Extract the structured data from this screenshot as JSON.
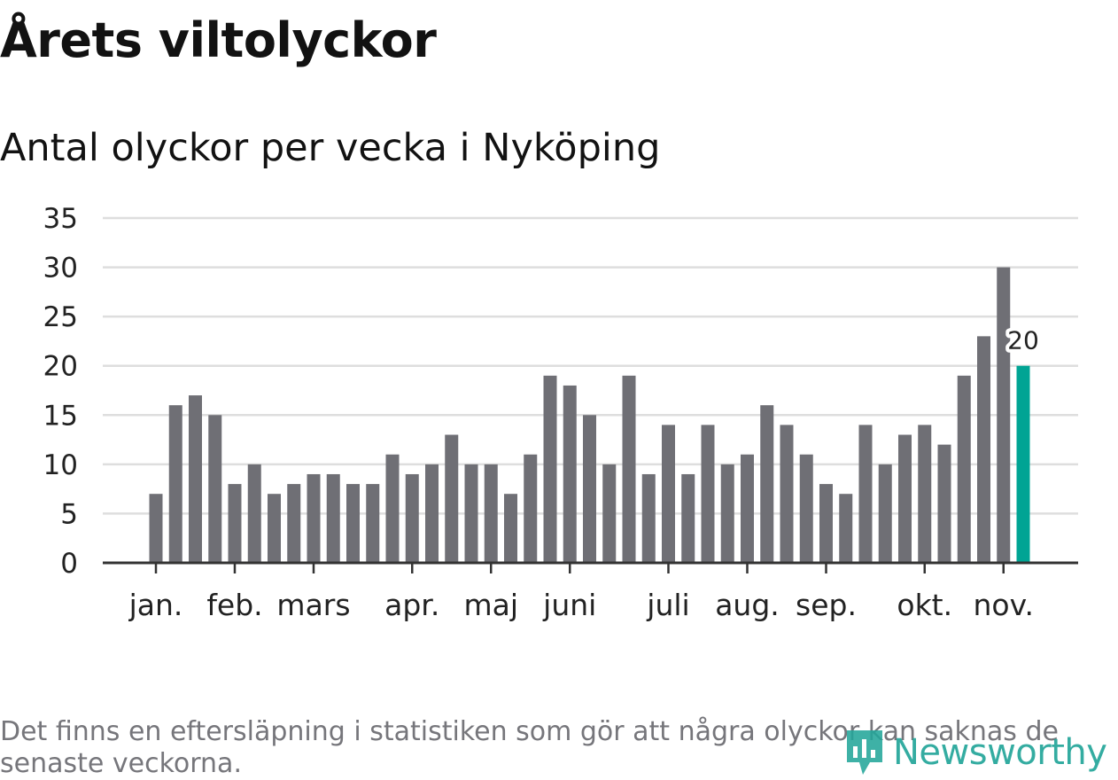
{
  "title": "Årets viltolyckor",
  "subtitle": "Antal olyckor per vecka i Nyköping",
  "footnote": "Det finns en eftersläpning i statistiken som gör att några olyckor kan saknas de senaste veckorna.",
  "brand": {
    "name": "Newsworthy",
    "icon": "newsworthy-logo-icon",
    "color": "#23a69a"
  },
  "colors": {
    "bar": "#6f6f75",
    "highlight": "#00a494",
    "grid": "#dedede",
    "axis": "#333333",
    "label": "#222222"
  },
  "chart_data": {
    "type": "bar",
    "title": "Årets viltolyckor",
    "subtitle": "Antal olyckor per vecka i Nyköping",
    "xlabel": "",
    "ylabel": "",
    "ylim": [
      0,
      35
    ],
    "yticks": [
      "0",
      "5",
      "10",
      "15",
      "20",
      "25",
      "30",
      "35"
    ],
    "grid": true,
    "values": [
      7,
      16,
      17,
      15,
      8,
      10,
      7,
      8,
      9,
      9,
      8,
      8,
      11,
      9,
      10,
      13,
      10,
      10,
      7,
      11,
      19,
      18,
      15,
      10,
      19,
      9,
      14,
      9,
      14,
      10,
      11,
      16,
      14,
      11,
      8,
      7,
      14,
      10,
      13,
      14,
      12,
      19,
      23,
      30,
      20
    ],
    "highlight_index": 44,
    "highlight_label": "20",
    "month_labels": [
      {
        "label": "jan.",
        "bar": 0
      },
      {
        "label": "feb.",
        "bar": 4
      },
      {
        "label": "mars",
        "bar": 8
      },
      {
        "label": "apr.",
        "bar": 13
      },
      {
        "label": "maj",
        "bar": 17
      },
      {
        "label": "juni",
        "bar": 21
      },
      {
        "label": "juli",
        "bar": 26
      },
      {
        "label": "aug.",
        "bar": 30
      },
      {
        "label": "sep.",
        "bar": 34
      },
      {
        "label": "okt.",
        "bar": 39
      },
      {
        "label": "nov.",
        "bar": 43
      }
    ]
  }
}
